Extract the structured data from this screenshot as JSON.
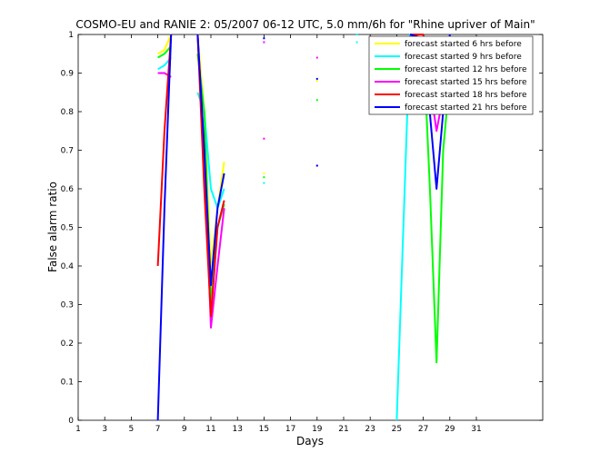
{
  "chart_data": {
    "type": "line",
    "title": "COSMO-EU and RANIE 2: 05/2007 06-12 UTC, 5.0 mm/6h for \"Rhine upriver of Main\"",
    "xlabel": "Days",
    "ylabel": "False alarm ratio",
    "xlim": [
      1,
      36
    ],
    "ylim": [
      0,
      1
    ],
    "xticks": [
      1,
      3,
      5,
      7,
      9,
      11,
      13,
      15,
      17,
      19,
      21,
      23,
      25,
      27,
      29,
      31
    ],
    "yticks": [
      0,
      0.1,
      0.2,
      0.3,
      0.4,
      0.5,
      0.6,
      0.7,
      0.8,
      0.9,
      1
    ],
    "grid": false,
    "legend_position": "top-right",
    "series": [
      {
        "name": "forecast started  6 hrs before",
        "color": "#ffff00",
        "segments": [
          [
            [
              7,
              0.95
            ],
            [
              7.5,
              0.96
            ],
            [
              8,
              1.0
            ]
          ],
          [
            [
              10,
              1.0
            ],
            [
              10.5,
              0.8
            ],
            [
              11,
              0.4
            ],
            [
              11.5,
              0.55
            ],
            [
              12,
              0.67
            ]
          ],
          [
            [
              26,
              1.0
            ],
            [
              27,
              0.99
            ],
            [
              28,
              0.9
            ],
            [
              29,
              0.95
            ]
          ]
        ],
        "points": [
          [
            15,
            0.64
          ],
          [
            19,
            0.88
          ]
        ]
      },
      {
        "name": "forecast started  9 hrs before",
        "color": "#00ffff",
        "segments": [
          [
            [
              7,
              0.91
            ],
            [
              7.5,
              0.92
            ],
            [
              8,
              0.94
            ]
          ],
          [
            [
              10,
              0.85
            ],
            [
              10.5,
              0.8
            ],
            [
              11,
              0.6
            ],
            [
              11.5,
              0.55
            ],
            [
              12,
              0.6
            ]
          ],
          [
            [
              25,
              0.0
            ],
            [
              26,
              1.0
            ],
            [
              27,
              1.0
            ],
            [
              28,
              0.85
            ],
            [
              29,
              0.9
            ]
          ]
        ],
        "points": [
          [
            15,
            0.615
          ],
          [
            22,
            0.98
          ],
          [
            22,
            1.0
          ]
        ]
      },
      {
        "name": "forecast started 12 hrs before",
        "color": "#00ff00",
        "segments": [
          [
            [
              7,
              0.94
            ],
            [
              7.5,
              0.95
            ],
            [
              8,
              0.97
            ]
          ],
          [
            [
              10,
              0.95
            ],
            [
              10.5,
              0.8
            ],
            [
              11,
              0.3
            ],
            [
              11.5,
              0.5
            ],
            [
              12,
              0.56
            ]
          ],
          [
            [
              26,
              0.99
            ],
            [
              27,
              0.98
            ],
            [
              27.5,
              0.6
            ],
            [
              28,
              0.15
            ],
            [
              28.5,
              0.7
            ],
            [
              29,
              0.89
            ]
          ]
        ],
        "points": [
          [
            15,
            0.63
          ],
          [
            19,
            0.83
          ]
        ]
      },
      {
        "name": "forecast started 15 hrs before",
        "color": "#ff00ff",
        "segments": [
          [
            [
              7,
              0.9
            ],
            [
              7.5,
              0.9
            ],
            [
              8,
              0.89
            ]
          ],
          [
            [
              10,
              1.0
            ],
            [
              10.5,
              0.7
            ],
            [
              11,
              0.24
            ],
            [
              11.5,
              0.4
            ],
            [
              12,
              0.55
            ]
          ],
          [
            [
              26,
              1.0
            ],
            [
              27,
              0.99
            ],
            [
              28,
              0.75
            ],
            [
              29,
              0.93
            ]
          ]
        ],
        "points": [
          [
            15,
            0.73
          ],
          [
            15,
            0.98
          ],
          [
            19,
            0.94
          ],
          [
            19,
            0.66
          ]
        ]
      },
      {
        "name": "forecast started 18 hrs before",
        "color": "#ff0000",
        "segments": [
          [
            [
              7,
              0.4
            ],
            [
              7.5,
              0.75
            ],
            [
              8,
              1.0
            ]
          ],
          [
            [
              10,
              1.0
            ],
            [
              10.5,
              0.6
            ],
            [
              11,
              0.27
            ],
            [
              11.5,
              0.5
            ],
            [
              12,
              0.57
            ]
          ],
          [
            [
              26,
              1.0
            ],
            [
              27,
              1.0
            ],
            [
              28,
              0.82
            ],
            [
              29,
              0.9
            ]
          ]
        ],
        "points": []
      },
      {
        "name": "forecast started 21 hrs before",
        "color": "#0000ff",
        "segments": [
          [
            [
              7,
              0.0
            ],
            [
              7.5,
              0.55
            ],
            [
              8,
              1.0
            ]
          ],
          [
            [
              10,
              1.0
            ],
            [
              10.5,
              0.7
            ],
            [
              11,
              0.35
            ],
            [
              11.5,
              0.55
            ],
            [
              12,
              0.64
            ]
          ],
          [
            [
              26,
              1.0
            ],
            [
              27,
              0.99
            ],
            [
              28,
              0.6
            ],
            [
              29,
              1.0
            ]
          ]
        ],
        "points": [
          [
            15,
            0.99
          ],
          [
            19,
            0.885
          ],
          [
            19,
            0.66
          ]
        ]
      }
    ]
  }
}
